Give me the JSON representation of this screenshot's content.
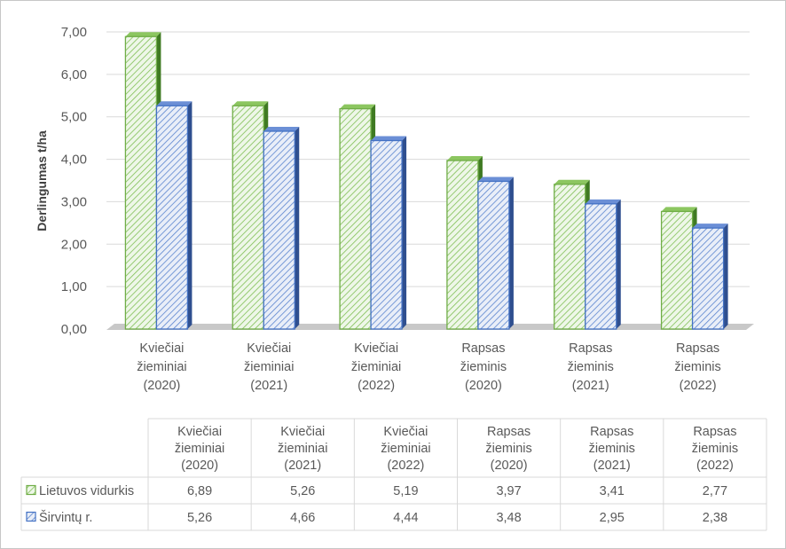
{
  "chart_data": {
    "type": "bar",
    "title": "",
    "ylabel": "Derlingumas t/ha",
    "xlabel": "",
    "ylim": [
      0,
      7
    ],
    "yticks": [
      "0,00",
      "1,00",
      "2,00",
      "3,00",
      "4,00",
      "5,00",
      "6,00",
      "7,00"
    ],
    "grid": true,
    "legend_placement": "data-table",
    "categories": [
      [
        "Kviečiai",
        "žieminiai",
        "(2020)"
      ],
      [
        "Kviečiai",
        "žieminiai",
        "(2021)"
      ],
      [
        "Kviečiai",
        "žieminiai",
        "(2022)"
      ],
      [
        "Rapsas",
        "žieminis",
        "(2020)"
      ],
      [
        "Rapsas",
        "žieminis",
        "(2021)"
      ],
      [
        "Rapsas",
        "žieminis",
        "(2022)"
      ]
    ],
    "series": [
      {
        "name": "Lietuvos vidurkis",
        "values": [
          6.89,
          5.26,
          5.19,
          3.97,
          3.41,
          2.77
        ],
        "labels": [
          "6,89",
          "5,26",
          "5,19",
          "3,97",
          "3,41",
          "2,77"
        ],
        "color": "#70ad47"
      },
      {
        "name": "Širvintų r.",
        "values": [
          5.26,
          4.66,
          4.44,
          3.48,
          2.95,
          2.38
        ],
        "labels": [
          "5,26",
          "4,66",
          "4,44",
          "3,48",
          "2,95",
          "2,38"
        ],
        "color": "#4472c4"
      }
    ]
  }
}
